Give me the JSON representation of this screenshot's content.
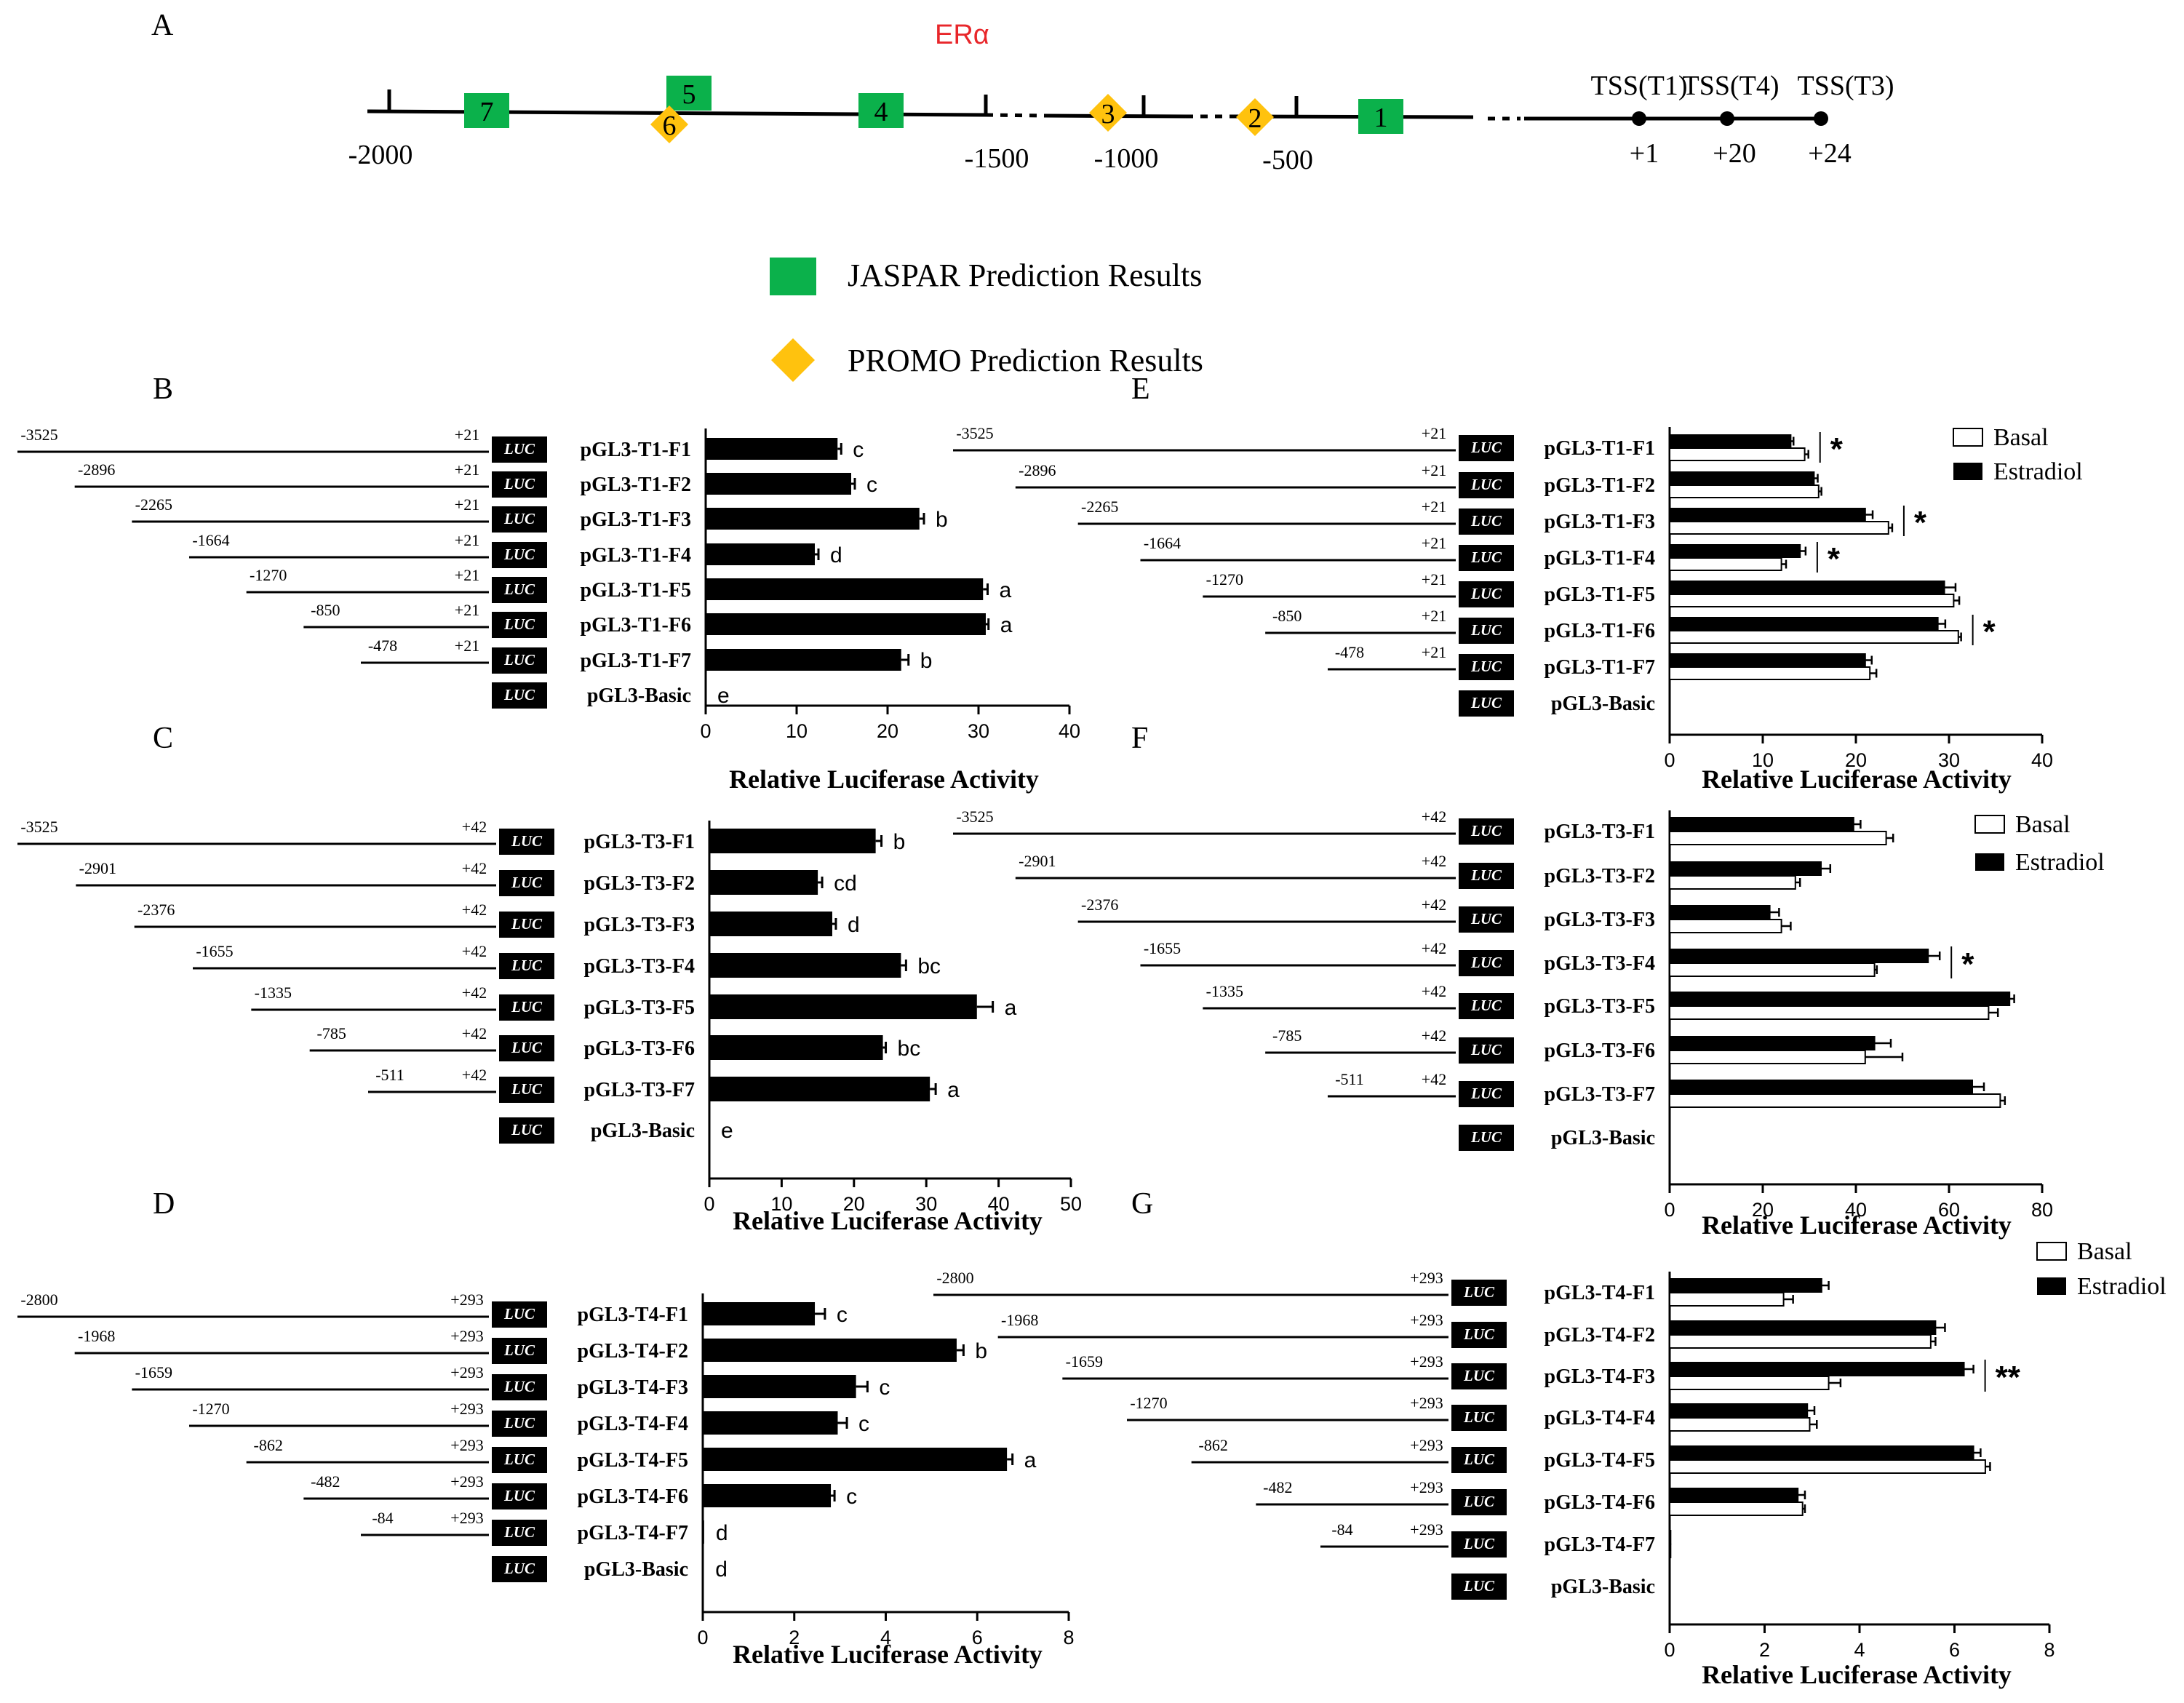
{
  "colors": {
    "jaspar": "#0bb14b",
    "promo": "#ffc20e",
    "era": "#e8262a",
    "bar": "#000000",
    "basal": "#ffffff"
  },
  "panel_a": {
    "letter": "A",
    "factor": "ERα",
    "positions": [
      "-2000",
      "-1500",
      "-1000",
      "-500"
    ],
    "tss": [
      {
        "name": "TSS(T1)",
        "pos": "+1"
      },
      {
        "name": "TSS(T4)",
        "pos": "+20"
      },
      {
        "name": "TSS(T3)",
        "pos": "+24"
      }
    ],
    "jaspar_sites": [
      "7",
      "5",
      "4",
      "1"
    ],
    "promo_sites": [
      "6",
      "3",
      "2"
    ],
    "legend": {
      "jaspar": "JASPAR Prediction Results",
      "promo": "PROMO Prediction Results"
    }
  },
  "chart_data": [
    {
      "panel": "B",
      "type": "bar",
      "orientation": "horizontal",
      "categories": [
        "pGL3-T1-F1",
        "pGL3-T1-F2",
        "pGL3-T1-F3",
        "pGL3-T1-F4",
        "pGL3-T1-F5",
        "pGL3-T1-F6",
        "pGL3-T1-F7",
        "pGL3-Basic"
      ],
      "starts": [
        "-3525",
        "-2896",
        "-2265",
        "-1664",
        "-1270",
        "-850",
        "-478",
        ""
      ],
      "end": "+21",
      "values": [
        14.5,
        16,
        23.5,
        12,
        30.5,
        30.8,
        21.5,
        0
      ],
      "errors": [
        0.4,
        0.4,
        0.5,
        0.4,
        0.5,
        0.3,
        0.8,
        0
      ],
      "letters": [
        "c",
        "c",
        "b",
        "d",
        "a",
        "a",
        "b",
        "e"
      ],
      "xticks": [
        "0",
        "10",
        "20",
        "30",
        "40"
      ],
      "xlim": [
        0,
        40
      ],
      "xlabel": "Relative Luciferase Activity",
      "luc": "LUC"
    },
    {
      "panel": "C",
      "type": "bar",
      "orientation": "horizontal",
      "categories": [
        "pGL3-T3-F1",
        "pGL3-T3-F2",
        "pGL3-T3-F3",
        "pGL3-T3-F4",
        "pGL3-T3-F5",
        "pGL3-T3-F6",
        "pGL3-T3-F7",
        "pGL3-Basic"
      ],
      "starts": [
        "-3525",
        "-2901",
        "-2376",
        "-1655",
        "-1335",
        "-785",
        "-511",
        ""
      ],
      "end": "+42",
      "values": [
        23,
        15,
        17,
        26.5,
        37,
        24,
        30.5,
        0
      ],
      "errors": [
        0.8,
        0.6,
        0.5,
        0.7,
        2.2,
        0.4,
        0.8,
        0
      ],
      "letters": [
        "b",
        "cd",
        "d",
        "bc",
        "a",
        "bc",
        "a",
        "e"
      ],
      "xticks": [
        "0",
        "10",
        "20",
        "30",
        "40",
        "50"
      ],
      "xlim": [
        0,
        50
      ],
      "xlabel": "Relative Luciferase Activity",
      "luc": "LUC"
    },
    {
      "panel": "D",
      "type": "bar",
      "orientation": "horizontal",
      "categories": [
        "pGL3-T4-F1",
        "pGL3-T4-F2",
        "pGL3-T4-F3",
        "pGL3-T4-F4",
        "pGL3-T4-F5",
        "pGL3-T4-F6",
        "pGL3-T4-F7",
        "pGL3-Basic"
      ],
      "starts": [
        "-2800",
        "-1968",
        "-1659",
        "-1270",
        "-862",
        "-482",
        "-84",
        ""
      ],
      "end": "+293",
      "values": [
        2.45,
        5.55,
        3.35,
        2.95,
        6.65,
        2.8,
        0.03,
        0.02
      ],
      "errors": [
        0.22,
        0.15,
        0.25,
        0.2,
        0.12,
        0.08,
        0,
        0
      ],
      "letters": [
        "c",
        "b",
        "c",
        "c",
        "a",
        "c",
        "d",
        "d"
      ],
      "xticks": [
        "0",
        "2",
        "4",
        "6",
        "8"
      ],
      "xlim": [
        0,
        8
      ],
      "xlabel": "Relative Luciferase Activity",
      "luc": "LUC"
    },
    {
      "panel": "E",
      "type": "bar",
      "orientation": "horizontal",
      "grouped": true,
      "categories": [
        "pGL3-T1-F1",
        "pGL3-T1-F2",
        "pGL3-T1-F3",
        "pGL3-T1-F4",
        "pGL3-T1-F5",
        "pGL3-T1-F6",
        "pGL3-T1-F7",
        "pGL3-Basic"
      ],
      "starts": [
        "-3525",
        "-2896",
        "-2265",
        "-1664",
        "-1270",
        "-850",
        "-478",
        ""
      ],
      "end": "+21",
      "series": [
        {
          "name": "Estradiol",
          "values": [
            13,
            15.5,
            21,
            14,
            29.5,
            28.8,
            21,
            0
          ],
          "errors": [
            0.3,
            0.4,
            0.8,
            0.6,
            1.2,
            0.8,
            0.7,
            0
          ]
        },
        {
          "name": "Basal",
          "values": [
            14.5,
            16,
            23.5,
            12,
            30.5,
            31,
            21.5,
            0
          ],
          "errors": [
            0.4,
            0.3,
            0.4,
            0.5,
            0.6,
            0.3,
            0.7,
            0
          ]
        }
      ],
      "significance": [
        "*",
        "",
        "*",
        "*",
        "",
        "*",
        "",
        ""
      ],
      "xticks": [
        "0",
        "10",
        "20",
        "30",
        "40"
      ],
      "xlim": [
        0,
        40
      ],
      "xlabel": "Relative Luciferase Activity",
      "luc": "LUC",
      "legend": [
        "Basal",
        "Estradiol"
      ]
    },
    {
      "panel": "F",
      "type": "bar",
      "orientation": "horizontal",
      "grouped": true,
      "categories": [
        "pGL3-T3-F1",
        "pGL3-T3-F2",
        "pGL3-T3-F3",
        "pGL3-T3-F4",
        "pGL3-T3-F5",
        "pGL3-T3-F6",
        "pGL3-T3-F7",
        "pGL3-Basic"
      ],
      "starts": [
        "-3525",
        "-2901",
        "-2376",
        "-1655",
        "-1335",
        "-785",
        "-511",
        ""
      ],
      "end": "+42",
      "series": [
        {
          "name": "Estradiol",
          "values": [
            39.5,
            32.5,
            21.5,
            55.5,
            73,
            44,
            65,
            0
          ],
          "errors": [
            1.5,
            2.0,
            2.0,
            2.5,
            1.0,
            3.5,
            2.5,
            0
          ]
        },
        {
          "name": "Basal",
          "values": [
            46.5,
            27,
            24,
            44,
            68.5,
            42,
            71,
            0
          ],
          "errors": [
            1.5,
            1.0,
            2.0,
            0.5,
            2.0,
            8.0,
            1.0,
            0
          ]
        }
      ],
      "significance": [
        "",
        "",
        "",
        "*",
        "",
        "",
        "",
        ""
      ],
      "xticks": [
        "0",
        "20",
        "40",
        "60",
        "80"
      ],
      "xlim": [
        0,
        80
      ],
      "xlabel": "Relative Luciferase Activity",
      "luc": "LUC",
      "legend": [
        "Basal",
        "Estradiol"
      ]
    },
    {
      "panel": "G",
      "type": "bar",
      "orientation": "horizontal",
      "grouped": true,
      "categories": [
        "pGL3-T4-F1",
        "pGL3-T4-F2",
        "pGL3-T4-F3",
        "pGL3-T4-F4",
        "pGL3-T4-F5",
        "pGL3-T4-F6",
        "pGL3-T4-F7",
        "pGL3-Basic"
      ],
      "starts": [
        "-2800",
        "-1968",
        "-1659",
        "-1270",
        "-862",
        "-482",
        "-84",
        ""
      ],
      "end": "+293",
      "series": [
        {
          "name": "Estradiol",
          "values": [
            3.2,
            5.6,
            6.2,
            2.9,
            6.4,
            2.7,
            0.02,
            0
          ],
          "errors": [
            0.15,
            0.2,
            0.2,
            0.15,
            0.15,
            0.15,
            0,
            0
          ]
        },
        {
          "name": "Basal",
          "values": [
            2.4,
            5.5,
            3.35,
            2.95,
            6.65,
            2.8,
            0.02,
            0
          ],
          "errors": [
            0.2,
            0.1,
            0.25,
            0.15,
            0.1,
            0.05,
            0,
            0
          ]
        }
      ],
      "significance": [
        "",
        "",
        "**",
        "",
        "",
        "",
        "",
        ""
      ],
      "xticks": [
        "0",
        "2",
        "4",
        "6",
        "8"
      ],
      "xlim": [
        0,
        8
      ],
      "xlabel": "Relative Luciferase Activity",
      "luc": "LUC",
      "legend": [
        "Basal",
        "Estradiol"
      ]
    }
  ]
}
